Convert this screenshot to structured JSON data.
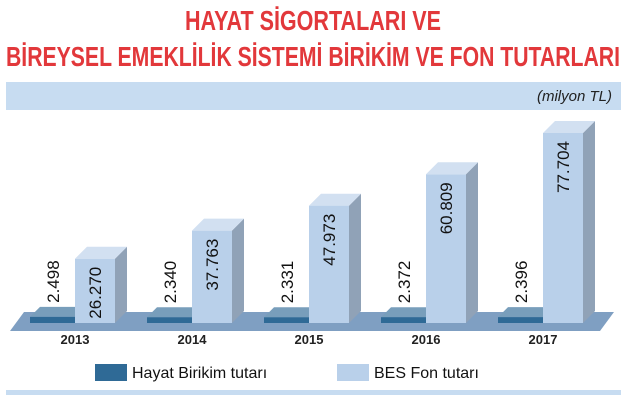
{
  "chart_data": {
    "type": "bar3d",
    "title": [
      "HAYAT SİGORTALARI VE",
      "BİREYSEL EMEKLİLİK SİSTEMİ BİRİKİM VE FON TUTARLARI"
    ],
    "subtitle": "(milyon TL)",
    "categories": [
      "2013",
      "2014",
      "2015",
      "2016",
      "2017"
    ],
    "series": [
      {
        "name": "Hayat Birikim tutarı",
        "color": "#2f6a96",
        "values": [
          2498,
          2340,
          2331,
          2372,
          2396
        ],
        "value_labels": [
          "2.498",
          "2.340",
          "2.331",
          "2.372",
          "2.396"
        ]
      },
      {
        "name": "BES Fon tutarı",
        "color": "#b9d0ea",
        "values": [
          26270,
          37763,
          47973,
          60809,
          77704
        ],
        "value_labels": [
          "26.270",
          "37.763",
          "47.973",
          "60.809",
          "77.704"
        ]
      }
    ]
  }
}
